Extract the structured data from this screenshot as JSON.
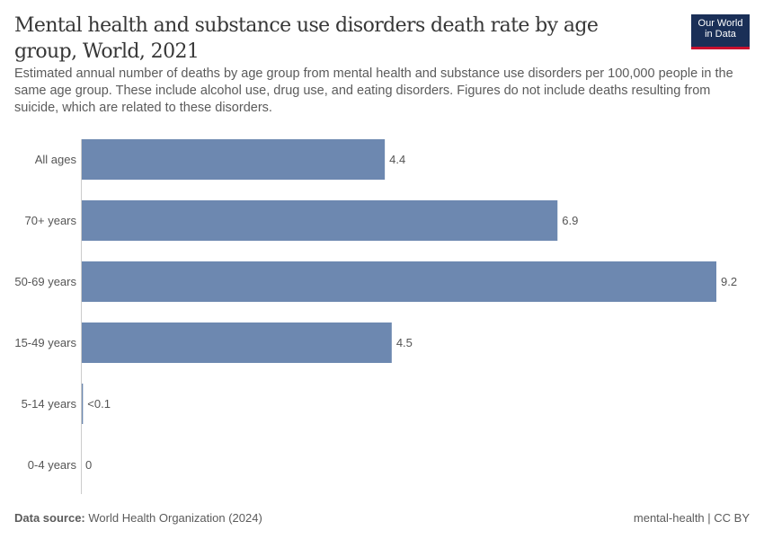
{
  "header": {
    "title": "Mental health and substance use disorders death rate by age group, World, 2021",
    "subtitle": "Estimated annual number of deaths by age group from mental health and substance use disorders per 100,000 people in the same age group. These include alcohol use, drug use, and eating disorders. Figures do not include deaths resulting from suicide, which are related to these disorders.",
    "logo_line1": "Our World",
    "logo_line2": "in Data"
  },
  "footer": {
    "source_label": "Data source:",
    "source": "World Health Organization (2024)",
    "license": "mental-health | CC BY"
  },
  "chart_data": {
    "type": "bar",
    "orientation": "horizontal",
    "categories": [
      "All ages",
      "70+ years",
      "50-69 years",
      "15-49 years",
      "5-14 years",
      "0-4 years"
    ],
    "values": [
      4.4,
      6.9,
      9.2,
      4.5,
      0.03,
      0
    ],
    "data_labels": [
      "4.4",
      "6.9",
      "9.2",
      "4.5",
      "<0.1",
      "0"
    ],
    "xlim": [
      0,
      9.2
    ],
    "grid": false,
    "bar_color": "#6d88b0"
  }
}
